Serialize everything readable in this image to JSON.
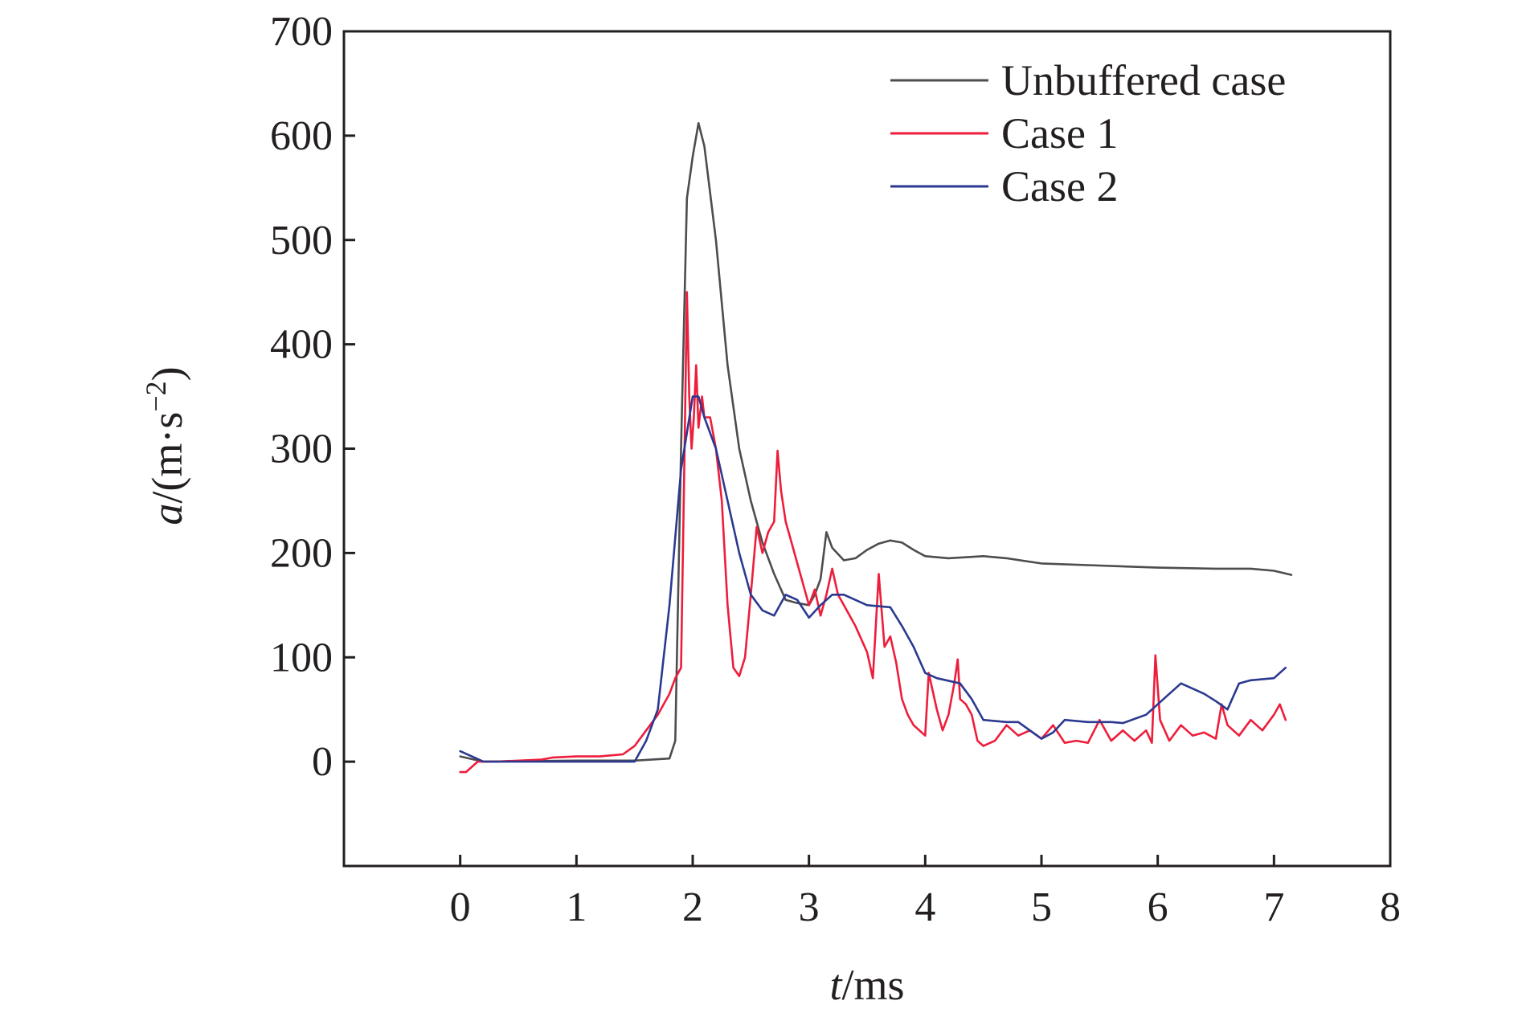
{
  "chart_data": {
    "type": "line",
    "title": "",
    "xlabel": {
      "var": "t",
      "unit": "/ms"
    },
    "ylabel": {
      "var": "a",
      "unit_open": "/(m·s",
      "unit_sup": "−2",
      "unit_close": ")"
    },
    "xlim": [
      -1,
      8
    ],
    "ylim": [
      -100,
      700
    ],
    "xticks": [
      0,
      1,
      2,
      3,
      4,
      5,
      6,
      7,
      8
    ],
    "yticks": [
      0,
      100,
      200,
      300,
      400,
      500,
      600,
      700
    ],
    "grid": false,
    "legend_position": "top-right",
    "series": [
      {
        "name": "Unbuffered case",
        "color": "#4d4d4f",
        "points": [
          [
            0.0,
            5
          ],
          [
            0.2,
            0
          ],
          [
            1.0,
            1
          ],
          [
            1.5,
            1
          ],
          [
            1.8,
            3
          ],
          [
            1.85,
            20
          ],
          [
            1.9,
            300
          ],
          [
            1.95,
            540
          ],
          [
            2.0,
            580
          ],
          [
            2.05,
            612
          ],
          [
            2.1,
            590
          ],
          [
            2.2,
            500
          ],
          [
            2.3,
            380
          ],
          [
            2.4,
            300
          ],
          [
            2.5,
            250
          ],
          [
            2.6,
            210
          ],
          [
            2.7,
            180
          ],
          [
            2.8,
            155
          ],
          [
            2.9,
            152
          ],
          [
            3.0,
            150
          ],
          [
            3.05,
            160
          ],
          [
            3.1,
            175
          ],
          [
            3.15,
            220
          ],
          [
            3.2,
            205
          ],
          [
            3.3,
            193
          ],
          [
            3.4,
            195
          ],
          [
            3.5,
            203
          ],
          [
            3.6,
            209
          ],
          [
            3.7,
            212
          ],
          [
            3.8,
            210
          ],
          [
            3.9,
            203
          ],
          [
            4.0,
            197
          ],
          [
            4.2,
            195
          ],
          [
            4.5,
            197
          ],
          [
            4.7,
            195
          ],
          [
            5.0,
            190
          ],
          [
            5.5,
            188
          ],
          [
            6.0,
            186
          ],
          [
            6.5,
            185
          ],
          [
            6.8,
            185
          ],
          [
            7.0,
            183
          ],
          [
            7.15,
            179
          ]
        ]
      },
      {
        "name": "Case 1",
        "color": "#ee1d3b",
        "points": [
          [
            0.0,
            -10
          ],
          [
            0.05,
            -10
          ],
          [
            0.1,
            -5
          ],
          [
            0.15,
            0
          ],
          [
            0.3,
            0
          ],
          [
            0.7,
            2
          ],
          [
            0.8,
            4
          ],
          [
            1.0,
            5
          ],
          [
            1.2,
            5
          ],
          [
            1.4,
            7
          ],
          [
            1.5,
            15
          ],
          [
            1.6,
            30
          ],
          [
            1.7,
            45
          ],
          [
            1.8,
            65
          ],
          [
            1.85,
            80
          ],
          [
            1.9,
            90
          ],
          [
            1.93,
            300
          ],
          [
            1.95,
            450
          ],
          [
            1.97,
            350
          ],
          [
            1.99,
            300
          ],
          [
            2.01,
            330
          ],
          [
            2.03,
            380
          ],
          [
            2.05,
            320
          ],
          [
            2.08,
            350
          ],
          [
            2.1,
            330
          ],
          [
            2.15,
            330
          ],
          [
            2.2,
            300
          ],
          [
            2.25,
            250
          ],
          [
            2.3,
            150
          ],
          [
            2.35,
            90
          ],
          [
            2.4,
            82
          ],
          [
            2.45,
            100
          ],
          [
            2.5,
            160
          ],
          [
            2.55,
            225
          ],
          [
            2.6,
            200
          ],
          [
            2.65,
            220
          ],
          [
            2.7,
            230
          ],
          [
            2.73,
            298
          ],
          [
            2.76,
            260
          ],
          [
            2.8,
            230
          ],
          [
            2.85,
            210
          ],
          [
            2.9,
            190
          ],
          [
            3.0,
            150
          ],
          [
            3.05,
            165
          ],
          [
            3.1,
            140
          ],
          [
            3.15,
            160
          ],
          [
            3.2,
            185
          ],
          [
            3.25,
            160
          ],
          [
            3.3,
            150
          ],
          [
            3.4,
            130
          ],
          [
            3.5,
            105
          ],
          [
            3.55,
            80
          ],
          [
            3.6,
            180
          ],
          [
            3.65,
            110
          ],
          [
            3.7,
            120
          ],
          [
            3.75,
            95
          ],
          [
            3.8,
            60
          ],
          [
            3.85,
            45
          ],
          [
            3.9,
            35
          ],
          [
            4.0,
            25
          ],
          [
            4.03,
            85
          ],
          [
            4.1,
            50
          ],
          [
            4.15,
            30
          ],
          [
            4.2,
            45
          ],
          [
            4.25,
            75
          ],
          [
            4.28,
            98
          ],
          [
            4.3,
            60
          ],
          [
            4.35,
            55
          ],
          [
            4.4,
            45
          ],
          [
            4.45,
            20
          ],
          [
            4.5,
            15
          ],
          [
            4.6,
            20
          ],
          [
            4.7,
            35
          ],
          [
            4.8,
            25
          ],
          [
            4.9,
            30
          ],
          [
            5.0,
            22
          ],
          [
            5.1,
            35
          ],
          [
            5.2,
            18
          ],
          [
            5.3,
            20
          ],
          [
            5.4,
            18
          ],
          [
            5.5,
            40
          ],
          [
            5.6,
            20
          ],
          [
            5.7,
            30
          ],
          [
            5.8,
            20
          ],
          [
            5.9,
            30
          ],
          [
            5.95,
            18
          ],
          [
            5.98,
            102
          ],
          [
            6.02,
            40
          ],
          [
            6.1,
            20
          ],
          [
            6.2,
            35
          ],
          [
            6.3,
            25
          ],
          [
            6.4,
            28
          ],
          [
            6.5,
            22
          ],
          [
            6.55,
            55
          ],
          [
            6.6,
            35
          ],
          [
            6.7,
            25
          ],
          [
            6.8,
            40
          ],
          [
            6.9,
            30
          ],
          [
            7.0,
            45
          ],
          [
            7.05,
            55
          ],
          [
            7.1,
            40
          ]
        ]
      },
      {
        "name": "Case 2",
        "color": "#2b3990",
        "points": [
          [
            0.0,
            10
          ],
          [
            0.2,
            0
          ],
          [
            1.0,
            0
          ],
          [
            1.5,
            0
          ],
          [
            1.6,
            20
          ],
          [
            1.7,
            50
          ],
          [
            1.8,
            150
          ],
          [
            1.9,
            280
          ],
          [
            2.0,
            350
          ],
          [
            2.05,
            350
          ],
          [
            2.1,
            330
          ],
          [
            2.2,
            300
          ],
          [
            2.3,
            250
          ],
          [
            2.4,
            200
          ],
          [
            2.5,
            160
          ],
          [
            2.6,
            145
          ],
          [
            2.7,
            140
          ],
          [
            2.8,
            160
          ],
          [
            2.9,
            155
          ],
          [
            3.0,
            138
          ],
          [
            3.1,
            150
          ],
          [
            3.2,
            160
          ],
          [
            3.3,
            160
          ],
          [
            3.5,
            150
          ],
          [
            3.7,
            148
          ],
          [
            3.8,
            130
          ],
          [
            3.9,
            110
          ],
          [
            4.0,
            85
          ],
          [
            4.1,
            80
          ],
          [
            4.3,
            75
          ],
          [
            4.4,
            60
          ],
          [
            4.5,
            40
          ],
          [
            4.7,
            38
          ],
          [
            4.8,
            38
          ],
          [
            5.0,
            22
          ],
          [
            5.1,
            28
          ],
          [
            5.2,
            40
          ],
          [
            5.4,
            38
          ],
          [
            5.5,
            38
          ],
          [
            5.6,
            38
          ],
          [
            5.7,
            37
          ],
          [
            5.9,
            45
          ],
          [
            6.0,
            55
          ],
          [
            6.1,
            65
          ],
          [
            6.2,
            75
          ],
          [
            6.3,
            70
          ],
          [
            6.4,
            65
          ],
          [
            6.5,
            58
          ],
          [
            6.6,
            50
          ],
          [
            6.7,
            75
          ],
          [
            6.8,
            78
          ],
          [
            7.0,
            80
          ],
          [
            7.1,
            90
          ]
        ]
      }
    ]
  }
}
